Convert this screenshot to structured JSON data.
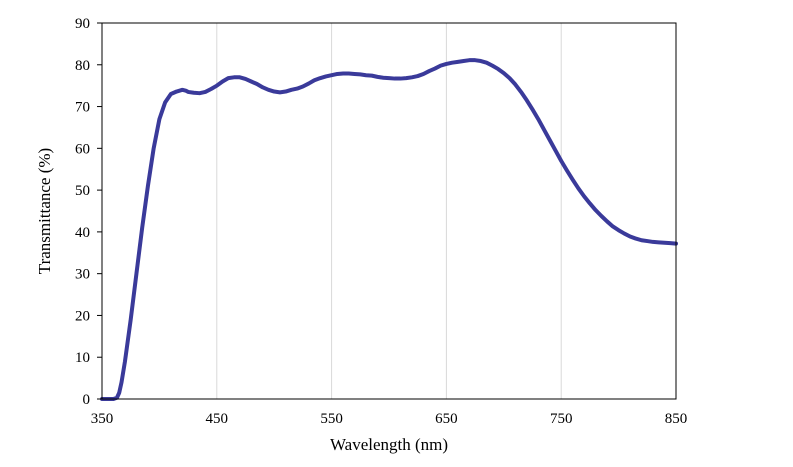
{
  "chart_data": {
    "type": "line",
    "title": "",
    "xlabel": "Wavelength (nm)",
    "ylabel": "Transmittance (%)",
    "xlim": [
      350,
      850
    ],
    "ylim": [
      0,
      90
    ],
    "x_ticks": [
      "350",
      "450",
      "550",
      "650",
      "750",
      "850"
    ],
    "y_ticks": [
      "0",
      "10",
      "20",
      "30",
      "40",
      "50",
      "60",
      "70",
      "80",
      "90"
    ],
    "grid": "vertical",
    "legend": "none",
    "colors": {
      "series": "#3a3a9a",
      "grid": "#d9d9d9",
      "frame": "#000000"
    },
    "series": [
      {
        "x": [
          350,
          355,
          360,
          363,
          365,
          367,
          370,
          375,
          380,
          385,
          390,
          395,
          400,
          405,
          410,
          415,
          420,
          423,
          425,
          430,
          435,
          440,
          445,
          450,
          455,
          460,
          465,
          470,
          475,
          480,
          485,
          490,
          495,
          500,
          505,
          510,
          515,
          520,
          525,
          530,
          535,
          540,
          545,
          550,
          555,
          560,
          565,
          570,
          575,
          580,
          585,
          590,
          595,
          600,
          605,
          610,
          615,
          620,
          625,
          630,
          635,
          640,
          645,
          650,
          655,
          660,
          665,
          670,
          675,
          680,
          685,
          690,
          695,
          700,
          705,
          710,
          715,
          720,
          725,
          730,
          735,
          740,
          745,
          750,
          755,
          760,
          765,
          770,
          775,
          780,
          785,
          790,
          795,
          800,
          805,
          810,
          815,
          820,
          825,
          830,
          835,
          840,
          845,
          850
        ],
        "y": [
          0,
          0,
          0,
          0.3,
          1.5,
          4,
          9,
          19,
          30,
          41,
          51,
          60,
          67,
          71,
          73,
          73.6,
          74,
          73.8,
          73.5,
          73.3,
          73.2,
          73.5,
          74.2,
          75,
          76,
          76.8,
          77,
          77,
          76.6,
          76,
          75.4,
          74.6,
          74,
          73.6,
          73.4,
          73.6,
          74,
          74.3,
          74.8,
          75.5,
          76.3,
          76.8,
          77.2,
          77.5,
          77.8,
          77.9,
          77.9,
          77.8,
          77.7,
          77.5,
          77.4,
          77.1,
          76.9,
          76.8,
          76.7,
          76.7,
          76.8,
          77.0,
          77.3,
          77.8,
          78.5,
          79.1,
          79.8,
          80.2,
          80.5,
          80.7,
          80.9,
          81.1,
          81.1,
          80.9,
          80.5,
          79.8,
          79.0,
          78.0,
          76.8,
          75.3,
          73.5,
          71.5,
          69.3,
          67.0,
          64.5,
          62.0,
          59.5,
          57.0,
          54.7,
          52.5,
          50.4,
          48.5,
          46.8,
          45.2,
          43.8,
          42.5,
          41.3,
          40.4,
          39.6,
          38.9,
          38.4,
          38.0,
          37.8,
          37.6,
          37.5,
          37.4,
          37.3,
          37.2
        ]
      }
    ]
  }
}
